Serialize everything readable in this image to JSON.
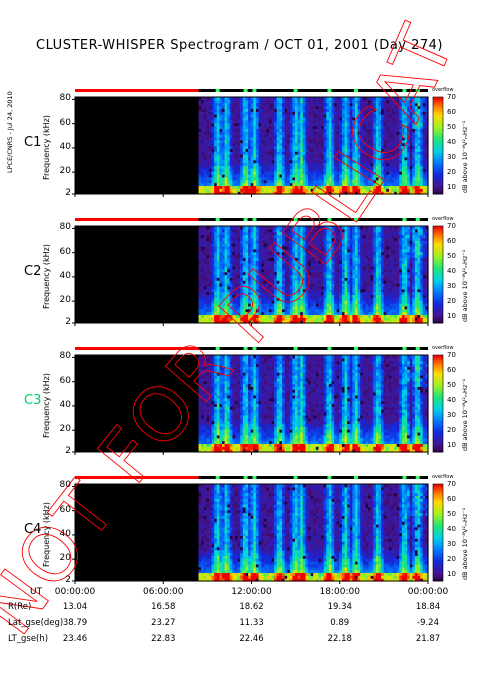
{
  "title": "CLUSTER-WHISPER Spectrogram / OCT 01, 2001 (Day 274)",
  "credit": "LPCE/CNRS - Jul 24, 2010",
  "watermark": "NOT FOR PUBLICATION",
  "colors": {
    "background": "#ffffff",
    "no_data": "#000000",
    "coverage_red": "#ff0000",
    "coverage_green": "#33ff66",
    "watermark": "#ff0000",
    "c3_label": "#00cc66"
  },
  "chart_data": {
    "type": "heatmap",
    "time_axis": {
      "label": "UT",
      "ticks": [
        "00:00:00",
        "06:00:00",
        "12:00:00",
        "18:00:00",
        "00:00:00"
      ],
      "range_hours": [
        0,
        24
      ]
    },
    "frequency_axis": {
      "label": "Frequency (kHz)",
      "ticks": [
        2,
        20,
        40,
        60,
        80
      ],
      "range": [
        2,
        82
      ]
    },
    "colorbar": {
      "label": "dB above 10⁻⁸V²ₘHz⁻¹",
      "ticks": [
        10,
        20,
        30,
        40,
        50,
        60,
        70
      ],
      "range": [
        5,
        70
      ],
      "overlap_label": "overflow"
    },
    "panels": [
      {
        "name": "C1",
        "label_color": "#000000"
      },
      {
        "name": "C2",
        "label_color": "#000000"
      },
      {
        "name": "C3",
        "label_color": "#00cc66"
      },
      {
        "name": "C4",
        "label_color": "#000000"
      }
    ],
    "data_start_hour": 8.4,
    "orbit_table": {
      "rows": [
        {
          "label": "R(Re)",
          "values": [
            "13.04",
            "16.58",
            "18.62",
            "19.34",
            "18.84"
          ]
        },
        {
          "label": "Lat_gse(deg)",
          "values": [
            "38.79",
            "23.27",
            "11.33",
            "0.89",
            "-9.24"
          ]
        },
        {
          "label": "LT_gse(h)",
          "values": [
            "23.46",
            "22.83",
            "22.46",
            "22.18",
            "21.87"
          ]
        }
      ]
    }
  }
}
